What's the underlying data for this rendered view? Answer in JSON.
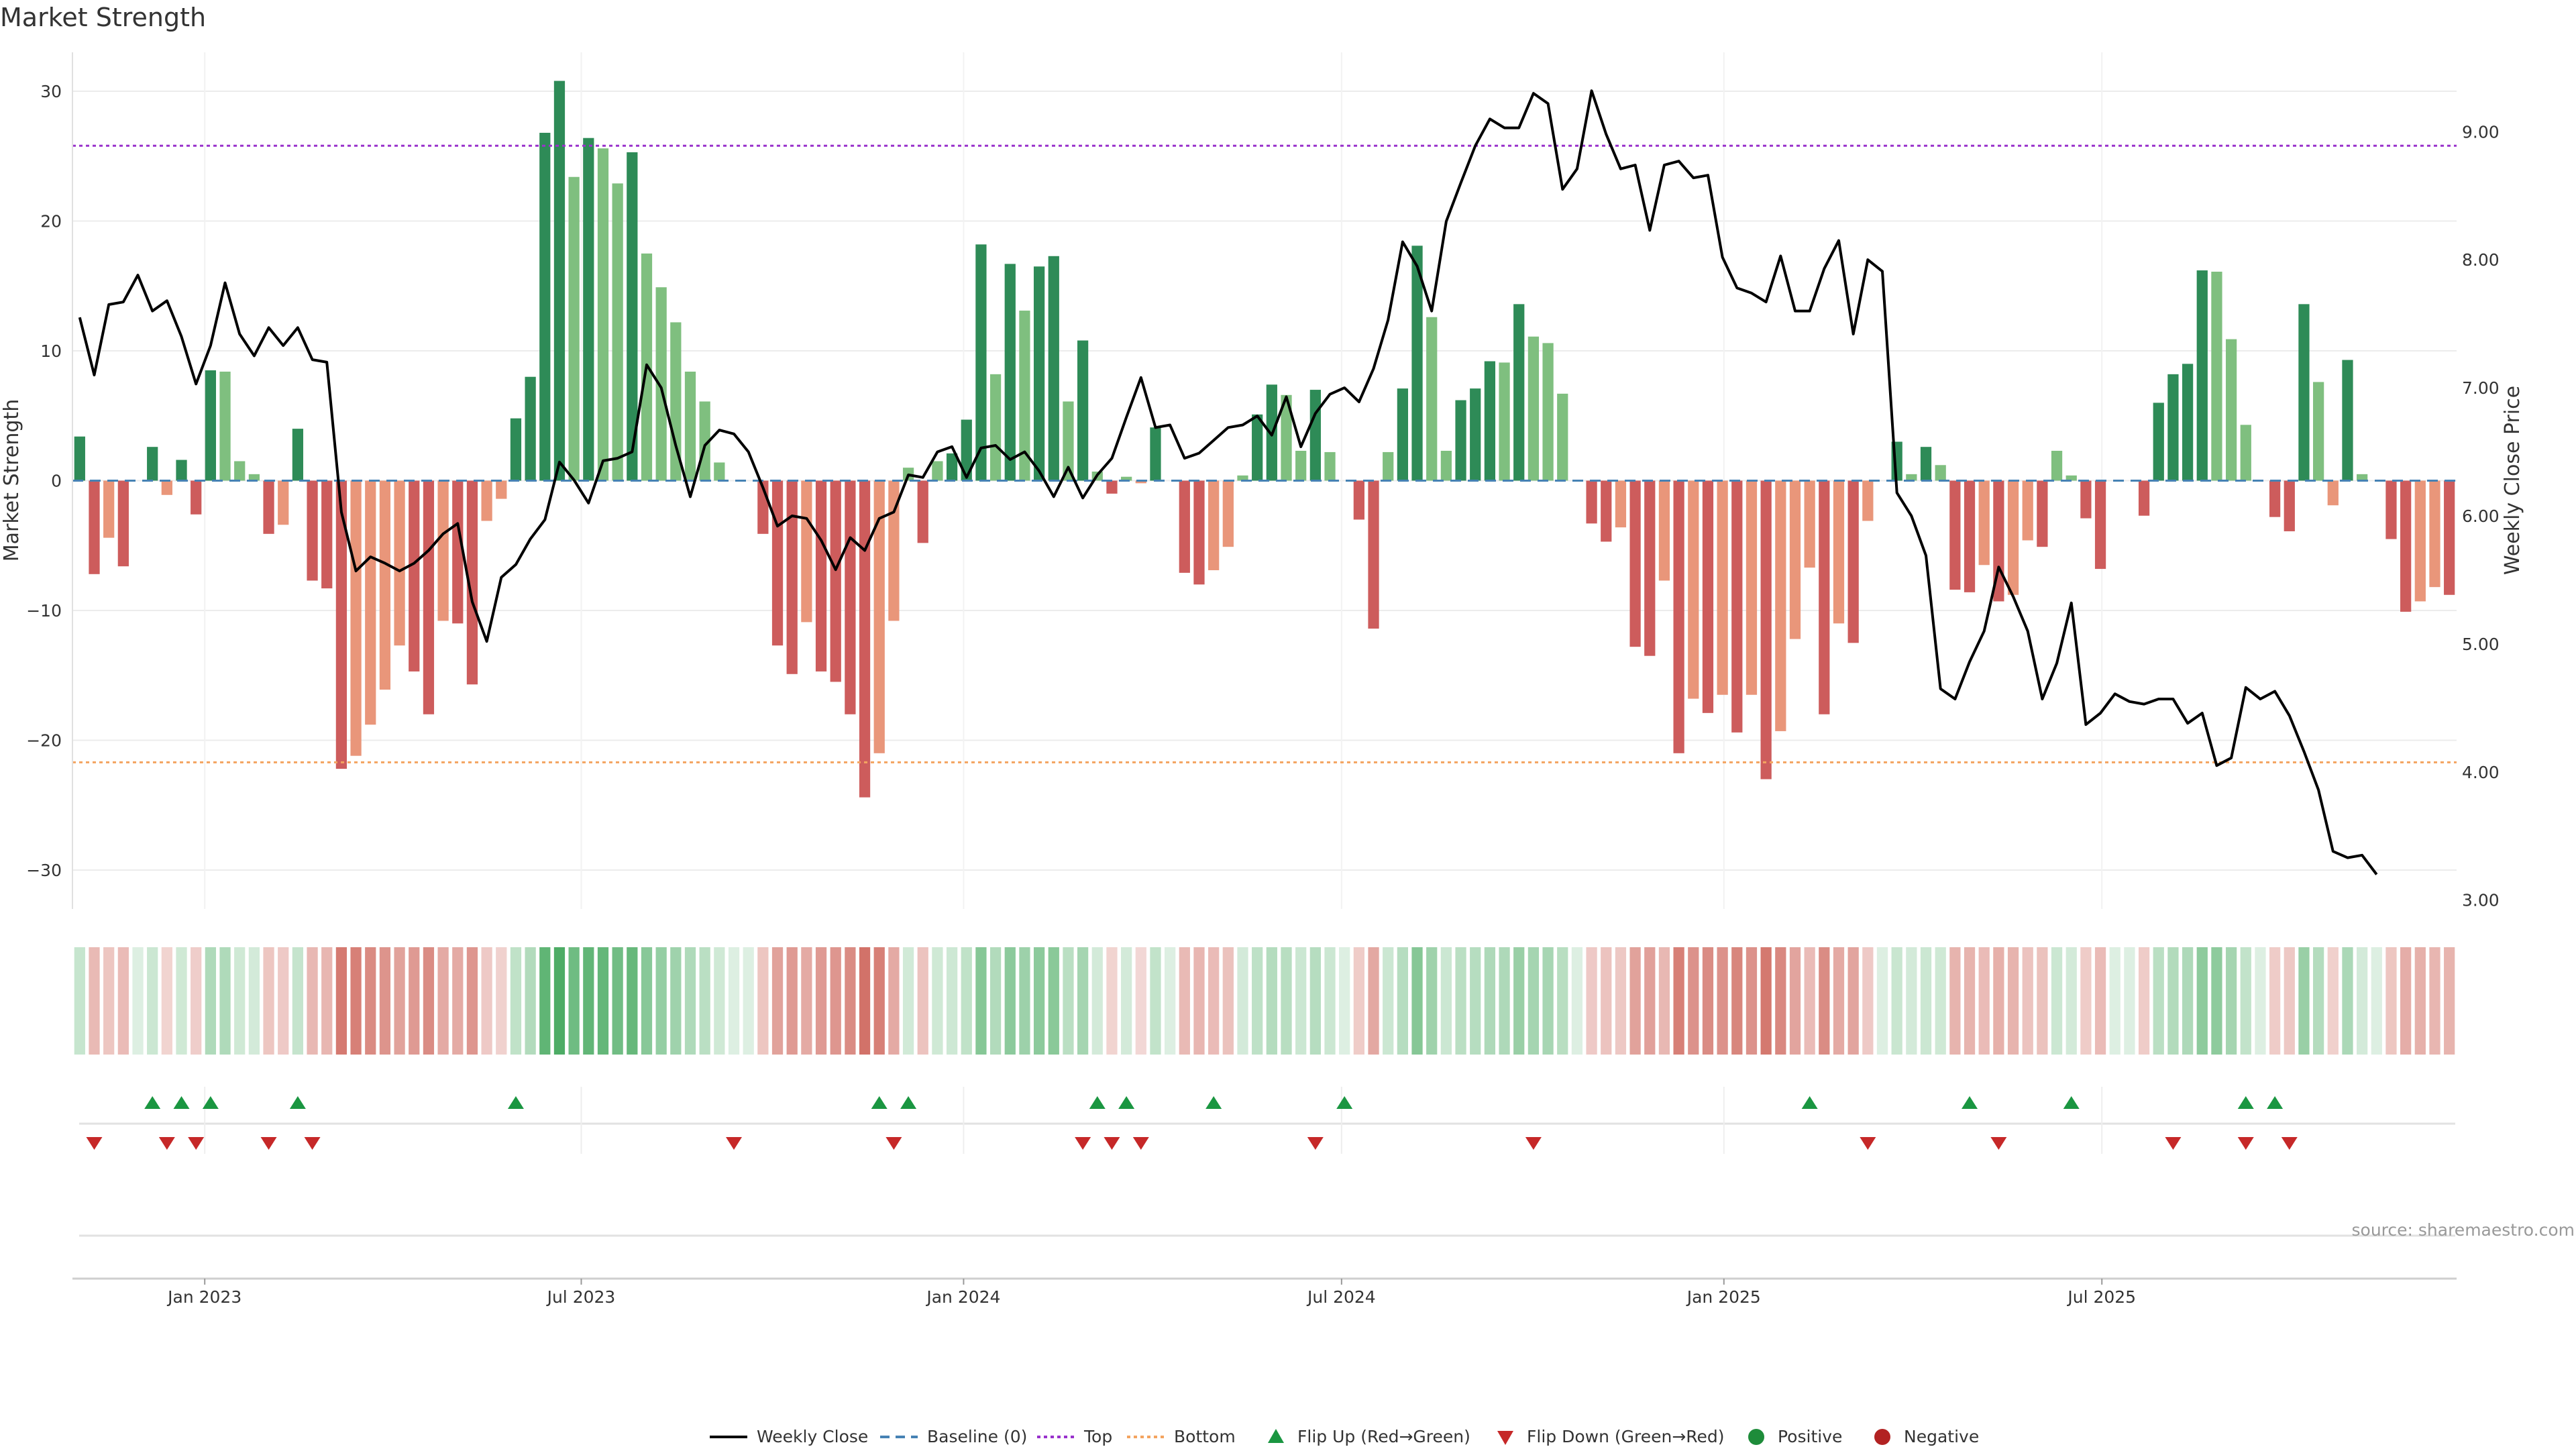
{
  "title": "Market Strength",
  "source": "source: sharemaestro.com",
  "colors": {
    "strong_pos": "#2e8b57",
    "weak_pos": "#7fbf7f",
    "strong_neg": "#cd5c5c",
    "weak_neg": "#e9967a",
    "close_line": "#000000",
    "baseline": "#4682b4",
    "top": "#9932cc",
    "bottom": "#f4a460",
    "flip_up": "#1a9641",
    "flip_down": "#c62828",
    "heat_pos": "#2e9e4a",
    "heat_neg": "#c0392b"
  },
  "chart_data": {
    "type": "bar+line",
    "title": "Market Strength",
    "ylabel_left": "Market Strength",
    "ylabel_right": "Weekly Close Price",
    "ylim_left": [
      -33,
      33
    ],
    "ylim_right": [
      2.93,
      9.62
    ],
    "yticks_left": [
      30,
      20,
      10,
      0,
      -10,
      -20,
      -30
    ],
    "ytick_labels_left": [
      "30",
      "20",
      "10",
      "0",
      "−10",
      "−20",
      "−30"
    ],
    "yticks_right": [
      9,
      8,
      7,
      6,
      5,
      4,
      3
    ],
    "ytick_labels_right": [
      "9.00",
      "8.00",
      "7.00",
      "6.00",
      "5.00",
      "4.00",
      "3.00"
    ],
    "x_start": "2022-10-28",
    "x_step_days": 7,
    "xticks": [
      {
        "label": "Jan 2023",
        "index": 9.1
      },
      {
        "label": "Jul 2023",
        "index": 35
      },
      {
        "label": "Jan 2024",
        "index": 61.3
      },
      {
        "label": "Jul 2024",
        "index": 87.3
      },
      {
        "label": "Jan 2025",
        "index": 113.6
      },
      {
        "label": "Jul 2025",
        "index": 139.6
      }
    ],
    "top_line": 25.8,
    "bottom_line": -21.7,
    "strength": [
      3.4,
      -7.2,
      -4.4,
      -6.6,
      0,
      2.6,
      -1.1,
      1.6,
      -2.6,
      8.5,
      8.4,
      1.5,
      0.5,
      -4.1,
      -3.4,
      4,
      -7.7,
      -8.3,
      -22.2,
      -21.2,
      -18.8,
      -16.1,
      -12.7,
      -14.7,
      -18,
      -10.8,
      -11,
      -15.7,
      -3.1,
      -1.4,
      4.8,
      8,
      26.8,
      30.8,
      23.4,
      26.4,
      25.6,
      22.9,
      25.3,
      17.5,
      14.9,
      12.2,
      8.4,
      6.1,
      1.4,
      0,
      0,
      -4.1,
      -12.7,
      -14.9,
      -10.9,
      -14.7,
      -15.5,
      -18,
      -24.4,
      -21,
      -10.8,
      1,
      -4.8,
      1.5,
      2.1,
      4.7,
      18.2,
      8.2,
      16.7,
      13.1,
      16.5,
      17.3,
      6.1,
      10.8,
      0.7,
      -1,
      0.3,
      -0.2,
      4.1,
      0,
      -7.1,
      -8,
      -6.9,
      -5.1,
      0.4,
      5.1,
      7.4,
      6.6,
      2.3,
      7,
      2.2,
      0,
      -3,
      -11.4,
      2.2,
      7.1,
      18.1,
      12.6,
      2.3,
      6.2,
      7.1,
      9.2,
      9.1,
      13.6,
      11.1,
      10.6,
      6.7,
      0,
      -3.3,
      -4.7,
      -3.6,
      -12.8,
      -13.5,
      -7.7,
      -21,
      -16.8,
      -17.9,
      -16.5,
      -19.4,
      -16.5,
      -23,
      -19.3,
      -12.2,
      -6.7,
      -18,
      -11,
      -12.5,
      -3.1,
      0,
      3,
      0.5,
      2.6,
      1.2,
      -8.4,
      -8.6,
      -6.5,
      -9.3,
      -8.8,
      -4.6,
      -5.1,
      2.3,
      0.4,
      -2.9,
      -6.8,
      0,
      0,
      -2.7,
      6,
      8.2,
      9,
      16.2,
      16.1,
      10.9,
      4.3,
      0,
      -2.8,
      -3.9,
      13.6,
      7.6,
      -1.9,
      9.3,
      0.5,
      0,
      -4.5,
      -10.1,
      -9.3,
      -8.2,
      -8.8
    ],
    "close": [
      7.55,
      7.1,
      7.65,
      7.67,
      7.88,
      7.6,
      7.68,
      7.4,
      7.03,
      7.33,
      7.82,
      7.42,
      7.25,
      7.47,
      7.33,
      7.47,
      7.22,
      7.2,
      6.03,
      5.57,
      5.68,
      5.63,
      5.57,
      5.63,
      5.73,
      5.86,
      5.94,
      5.33,
      5.02,
      5.52,
      5.62,
      5.82,
      5.97,
      6.42,
      6.28,
      6.1,
      6.43,
      6.45,
      6.5,
      7.18,
      7.0,
      6.55,
      6.15,
      6.55,
      6.67,
      6.64,
      6.5,
      6.22,
      5.92,
      6.0,
      5.98,
      5.81,
      5.58,
      5.83,
      5.73,
      5.98,
      6.03,
      6.32,
      6.3,
      6.5,
      6.54,
      6.3,
      6.53,
      6.55,
      6.44,
      6.5,
      6.35,
      6.15,
      6.38,
      6.14,
      6.32,
      6.45,
      6.77,
      7.08,
      6.69,
      6.71,
      6.45,
      6.49,
      6.59,
      6.69,
      6.71,
      6.78,
      6.63,
      6.93,
      6.54,
      6.8,
      6.95,
      7.0,
      6.89,
      7.15,
      7.53,
      8.14,
      7.95,
      7.6,
      8.3,
      8.6,
      8.89,
      9.1,
      9.03,
      9.03,
      9.3,
      9.22,
      8.55,
      8.71,
      9.32,
      8.98,
      8.71,
      8.74,
      8.23,
      8.74,
      8.77,
      8.64,
      8.66,
      8.02,
      7.78,
      7.74,
      7.67,
      8.03,
      7.6,
      7.6,
      7.93,
      8.15,
      7.42,
      8.0,
      7.91,
      6.18,
      6.0,
      5.69,
      4.65,
      4.57,
      4.86,
      5.1,
      5.6,
      5.37,
      5.1,
      4.57,
      4.85,
      5.32,
      4.37,
      4.46,
      4.61,
      4.55,
      4.53,
      4.57,
      4.57,
      4.38,
      4.46,
      4.05,
      4.11,
      4.66,
      4.57,
      4.63,
      4.44,
      4.16,
      3.86,
      3.38,
      3.33,
      3.35,
      3.2
    ],
    "flip_up": [
      5,
      7,
      9,
      15,
      30,
      55,
      57,
      70,
      72,
      78,
      87,
      119,
      130,
      137,
      149,
      151
    ],
    "flip_down": [
      1,
      6,
      8,
      13,
      16,
      45,
      56,
      69,
      71,
      73,
      85,
      100,
      123,
      132,
      144,
      149,
      152
    ],
    "legend": [
      "Weekly Close",
      "Baseline (0)",
      "Top",
      "Bottom",
      "Flip Up (Red→Green)",
      "Flip Down (Green→Red)",
      "Positive",
      "Negative"
    ]
  }
}
